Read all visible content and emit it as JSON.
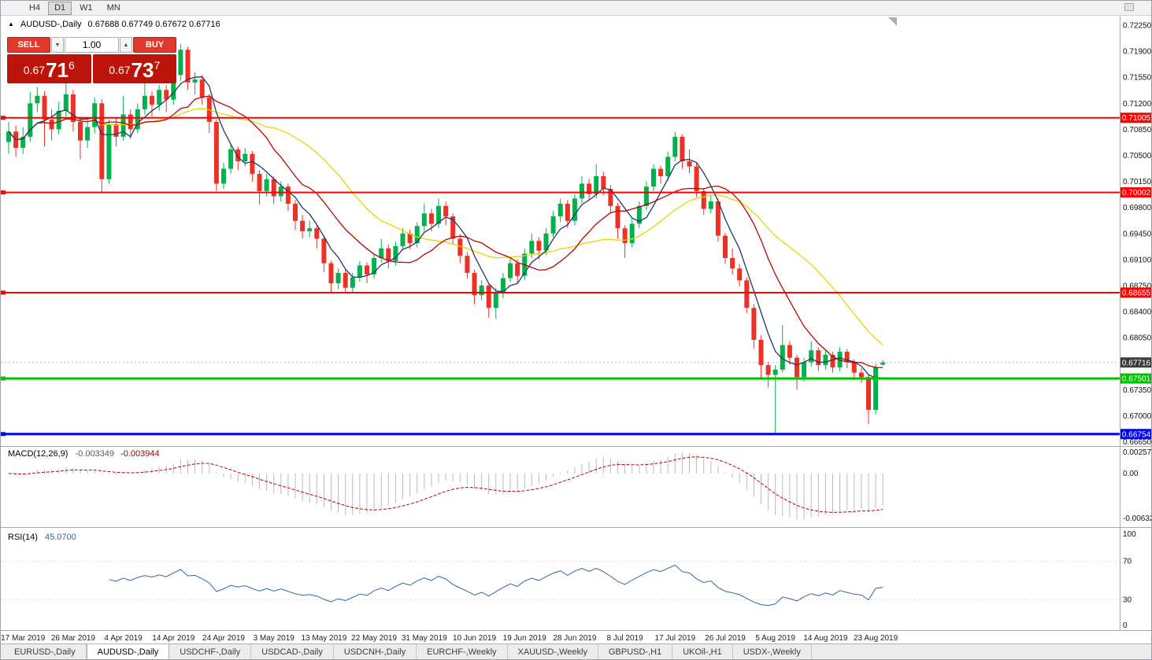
{
  "toolbar": {
    "timeframes": [
      "H4",
      "D1",
      "W1",
      "MN"
    ],
    "active": "D1"
  },
  "chart_header": {
    "title": "AUDUSD-,Daily",
    "ohlc": "0.67688 0.67749 0.67672 0.67716"
  },
  "trade_panel": {
    "sell_label": "SELL",
    "buy_label": "BUY",
    "volume": "1.00",
    "down_arrow": "▼",
    "up_arrow": "▲",
    "bid": {
      "prefix": "0.67",
      "big": "71",
      "sup": "6"
    },
    "ask": {
      "prefix": "0.67",
      "big": "73",
      "sup": "7"
    }
  },
  "macd_panel": {
    "name": "MACD(12,26,9)",
    "value_main": "-0.003349",
    "value_signal": "-0.003944"
  },
  "rsi_panel": {
    "name": "RSI(14)",
    "value": "45.0700"
  },
  "bottom_tabs": {
    "tabs": [
      "EURUSD-,Daily",
      "AUDUSD-,Daily",
      "USDCHF-,Daily",
      "USDCAD-,Daily",
      "USDCNH-,Daily",
      "EURCHF-,Weekly",
      "XAUUSD-,Weekly",
      "GBPUSD-,H1",
      "UKOil-,H1",
      "USDX-,Weekly"
    ],
    "active": "AUDUSD-,Daily"
  },
  "chart_data": {
    "type": "candlestick",
    "symbol": "AUDUSD-",
    "timeframe": "Daily",
    "ohlc_current": {
      "open": 0.67688,
      "high": 0.67749,
      "low": 0.67672,
      "close": 0.67716
    },
    "colors": {
      "up": "#00b14c",
      "down": "#ef3024"
    },
    "price_axis": {
      "max": 0.7225,
      "step": 0.0035,
      "labels": [
        "0.72250",
        "0.71900",
        "0.71550",
        "0.71200",
        "0.70850",
        "0.70500",
        "0.70150",
        "0.69800",
        "0.69450",
        "0.69100",
        "0.68750",
        "0.68400",
        "0.68050",
        "0.67700",
        "0.67350",
        "0.67000",
        "0.66650"
      ]
    },
    "levels": [
      {
        "price": 0.71005,
        "label": "0.71005",
        "color": "#ff0000",
        "width": 2
      },
      {
        "price": 0.70002,
        "label": "0.70002",
        "color": "#ff0000",
        "width": 2
      },
      {
        "price": 0.68655,
        "label": "0.68655",
        "color": "#ff0000",
        "width": 2
      },
      {
        "price": 0.67501,
        "label": "0.67501",
        "color": "#00c300",
        "width": 3
      },
      {
        "price": 0.66754,
        "label": "0.66754",
        "color": "#0000ff",
        "width": 3
      }
    ],
    "current_price": {
      "value": 0.67716,
      "label": "0.67716",
      "tag_color": "#3c3c3c"
    },
    "moving_averages": [
      {
        "period": 24,
        "color": "#e8d400"
      },
      {
        "period": 13,
        "color": "#c00000"
      },
      {
        "period": 5,
        "color": "#1f3864"
      }
    ],
    "macd": {
      "fast": 12,
      "slow": 26,
      "signal": 9,
      "histogram_color": "#b8b8b8",
      "signal_color": "#c00000",
      "axis_labels": [
        "0.002574",
        "0.00",
        "-0.006326"
      ]
    },
    "rsi": {
      "period": 14,
      "color": "#3465a8",
      "levels": [
        70,
        30
      ],
      "axis_labels": [
        "100",
        "70",
        "30",
        "0"
      ]
    },
    "x_labels": [
      {
        "i": 2,
        "label": "17 Mar 2019"
      },
      {
        "i": 9,
        "label": "26 Mar 2019"
      },
      {
        "i": 16,
        "label": "4 Apr 2019"
      },
      {
        "i": 23,
        "label": "14 Apr 2019"
      },
      {
        "i": 30,
        "label": "24 Apr 2019"
      },
      {
        "i": 37,
        "label": "3 May 2019"
      },
      {
        "i": 44,
        "label": "13 May 2019"
      },
      {
        "i": 51,
        "label": "22 May 2019"
      },
      {
        "i": 58,
        "label": "31 May 2019"
      },
      {
        "i": 65,
        "label": "10 Jun 2019"
      },
      {
        "i": 72,
        "label": "19 Jun 2019"
      },
      {
        "i": 79,
        "label": "28 Jun 2019"
      },
      {
        "i": 86,
        "label": "8 Jul 2019"
      },
      {
        "i": 93,
        "label": "17 Jul 2019"
      },
      {
        "i": 100,
        "label": "26 Jul 2019"
      },
      {
        "i": 107,
        "label": "5 Aug 2019"
      },
      {
        "i": 114,
        "label": "14 Aug 2019"
      },
      {
        "i": 121,
        "label": "23 Aug 2019"
      }
    ],
    "candles": [
      [
        0.7068,
        0.7095,
        0.7052,
        0.7082
      ],
      [
        0.7082,
        0.709,
        0.7048,
        0.706
      ],
      [
        0.706,
        0.7088,
        0.7052,
        0.7075
      ],
      [
        0.7075,
        0.7135,
        0.7068,
        0.712
      ],
      [
        0.712,
        0.7142,
        0.7108,
        0.713
      ],
      [
        0.713,
        0.7136,
        0.7062,
        0.7098
      ],
      [
        0.7098,
        0.7112,
        0.707,
        0.7085
      ],
      [
        0.7085,
        0.7122,
        0.7078,
        0.711
      ],
      [
        0.711,
        0.715,
        0.7102,
        0.7132
      ],
      [
        0.7132,
        0.7138,
        0.7082,
        0.7095
      ],
      [
        0.7095,
        0.7102,
        0.7045,
        0.707
      ],
      [
        0.707,
        0.7098,
        0.706,
        0.7088
      ],
      [
        0.7088,
        0.7128,
        0.708,
        0.712
      ],
      [
        0.712,
        0.7126,
        0.7,
        0.7018
      ],
      [
        0.7018,
        0.7098,
        0.7012,
        0.7092
      ],
      [
        0.7092,
        0.71,
        0.7062,
        0.7075
      ],
      [
        0.7075,
        0.713,
        0.707,
        0.7105
      ],
      [
        0.7105,
        0.7112,
        0.7072,
        0.7085
      ],
      [
        0.7085,
        0.712,
        0.708,
        0.7112
      ],
      [
        0.7112,
        0.7148,
        0.7105,
        0.713
      ],
      [
        0.713,
        0.7136,
        0.7102,
        0.7118
      ],
      [
        0.7118,
        0.7145,
        0.711,
        0.7138
      ],
      [
        0.7138,
        0.7144,
        0.7108,
        0.7125
      ],
      [
        0.7125,
        0.7168,
        0.7118,
        0.7158
      ],
      [
        0.7158,
        0.72,
        0.715,
        0.7192
      ],
      [
        0.7192,
        0.7196,
        0.7138,
        0.7148
      ],
      [
        0.7148,
        0.7162,
        0.7132,
        0.7152
      ],
      [
        0.7152,
        0.7158,
        0.7118,
        0.7128
      ],
      [
        0.7128,
        0.7132,
        0.708,
        0.7095
      ],
      [
        0.7095,
        0.7098,
        0.7002,
        0.7012
      ],
      [
        0.7012,
        0.704,
        0.7005,
        0.7032
      ],
      [
        0.7032,
        0.7065,
        0.7025,
        0.7058
      ],
      [
        0.7058,
        0.7062,
        0.703,
        0.7042
      ],
      [
        0.7042,
        0.706,
        0.7035,
        0.7052
      ],
      [
        0.7052,
        0.7056,
        0.7015,
        0.7025
      ],
      [
        0.7025,
        0.703,
        0.6984,
        0.7002
      ],
      [
        0.7002,
        0.7025,
        0.6995,
        0.7018
      ],
      [
        0.7018,
        0.7022,
        0.6985,
        0.6995
      ],
      [
        0.6995,
        0.7015,
        0.6988,
        0.7008
      ],
      [
        0.7008,
        0.7012,
        0.6975,
        0.6985
      ],
      [
        0.6985,
        0.699,
        0.695,
        0.6962
      ],
      [
        0.6962,
        0.697,
        0.6938,
        0.6948
      ],
      [
        0.6948,
        0.6962,
        0.694,
        0.6952
      ],
      [
        0.6952,
        0.6956,
        0.6925,
        0.6938
      ],
      [
        0.6938,
        0.6942,
        0.6893,
        0.6905
      ],
      [
        0.6905,
        0.6908,
        0.6866,
        0.6878
      ],
      [
        0.6878,
        0.6898,
        0.687,
        0.6892
      ],
      [
        0.6892,
        0.6896,
        0.6865,
        0.6872
      ],
      [
        0.6872,
        0.6892,
        0.6866,
        0.6886
      ],
      [
        0.6886,
        0.6908,
        0.688,
        0.6902
      ],
      [
        0.6902,
        0.6906,
        0.6878,
        0.689
      ],
      [
        0.689,
        0.6918,
        0.6884,
        0.6912
      ],
      [
        0.6912,
        0.6938,
        0.6906,
        0.6925
      ],
      [
        0.6925,
        0.693,
        0.6898,
        0.6908
      ],
      [
        0.6908,
        0.6934,
        0.6902,
        0.6928
      ],
      [
        0.6928,
        0.6952,
        0.6922,
        0.6945
      ],
      [
        0.6945,
        0.695,
        0.6924,
        0.6932
      ],
      [
        0.6932,
        0.696,
        0.6926,
        0.6955
      ],
      [
        0.6955,
        0.6985,
        0.6948,
        0.6972
      ],
      [
        0.6972,
        0.6978,
        0.6948,
        0.6958
      ],
      [
        0.6958,
        0.6992,
        0.6952,
        0.6982
      ],
      [
        0.6982,
        0.6988,
        0.6956,
        0.6968
      ],
      [
        0.6968,
        0.6972,
        0.693,
        0.6938
      ],
      [
        0.6938,
        0.6944,
        0.6905,
        0.6915
      ],
      [
        0.6915,
        0.692,
        0.6884,
        0.6892
      ],
      [
        0.6892,
        0.6896,
        0.685,
        0.6862
      ],
      [
        0.6862,
        0.6882,
        0.6855,
        0.6875
      ],
      [
        0.6875,
        0.6878,
        0.6832,
        0.6845
      ],
      [
        0.6845,
        0.6872,
        0.683,
        0.6865
      ],
      [
        0.6865,
        0.6892,
        0.6858,
        0.6885
      ],
      [
        0.6885,
        0.6912,
        0.688,
        0.6905
      ],
      [
        0.6905,
        0.691,
        0.6878,
        0.6888
      ],
      [
        0.6888,
        0.6925,
        0.6882,
        0.6918
      ],
      [
        0.6918,
        0.6945,
        0.6912,
        0.6935
      ],
      [
        0.6935,
        0.694,
        0.691,
        0.6922
      ],
      [
        0.6922,
        0.6952,
        0.6916,
        0.6945
      ],
      [
        0.6945,
        0.6975,
        0.694,
        0.6968
      ],
      [
        0.6968,
        0.6992,
        0.696,
        0.6985
      ],
      [
        0.6985,
        0.699,
        0.6952,
        0.6962
      ],
      [
        0.6962,
        0.6998,
        0.6956,
        0.6992
      ],
      [
        0.6992,
        0.7022,
        0.6986,
        0.7012
      ],
      [
        0.7012,
        0.7018,
        0.699,
        0.6998
      ],
      [
        0.6998,
        0.7038,
        0.6992,
        0.7022
      ],
      [
        0.7022,
        0.7028,
        0.6996,
        0.7005
      ],
      [
        0.7005,
        0.701,
        0.6972,
        0.6982
      ],
      [
        0.6982,
        0.6986,
        0.6938,
        0.6952
      ],
      [
        0.6952,
        0.6956,
        0.6912,
        0.6932
      ],
      [
        0.6932,
        0.6965,
        0.6926,
        0.6958
      ],
      [
        0.6958,
        0.6988,
        0.6952,
        0.6982
      ],
      [
        0.6982,
        0.7015,
        0.6976,
        0.7008
      ],
      [
        0.7008,
        0.7038,
        0.7002,
        0.7032
      ],
      [
        0.7032,
        0.7036,
        0.7012,
        0.7022
      ],
      [
        0.7022,
        0.7055,
        0.7016,
        0.7048
      ],
      [
        0.7048,
        0.7082,
        0.7042,
        0.7075
      ],
      [
        0.7075,
        0.7078,
        0.7032,
        0.7042
      ],
      [
        0.7042,
        0.7058,
        0.7026,
        0.7035
      ],
      [
        0.7035,
        0.704,
        0.6994,
        0.7002
      ],
      [
        0.7002,
        0.7006,
        0.697,
        0.6978
      ],
      [
        0.6978,
        0.6996,
        0.6972,
        0.6988
      ],
      [
        0.6988,
        0.6992,
        0.6934,
        0.6942
      ],
      [
        0.6942,
        0.6946,
        0.6904,
        0.6912
      ],
      [
        0.6912,
        0.6925,
        0.689,
        0.6898
      ],
      [
        0.6898,
        0.6904,
        0.6874,
        0.6882
      ],
      [
        0.6882,
        0.6886,
        0.6838,
        0.6845
      ],
      [
        0.6845,
        0.685,
        0.679,
        0.6802
      ],
      [
        0.6802,
        0.6808,
        0.6748,
        0.6768
      ],
      [
        0.6768,
        0.6772,
        0.6738,
        0.6755
      ],
      [
        0.6755,
        0.6768,
        0.6677,
        0.6762
      ],
      [
        0.6762,
        0.6822,
        0.6758,
        0.6795
      ],
      [
        0.6795,
        0.68,
        0.6768,
        0.6778
      ],
      [
        0.6778,
        0.6782,
        0.6735,
        0.6752
      ],
      [
        0.6752,
        0.6778,
        0.6746,
        0.6772
      ],
      [
        0.6772,
        0.68,
        0.6766,
        0.6788
      ],
      [
        0.6788,
        0.6792,
        0.676,
        0.6768
      ],
      [
        0.6768,
        0.6788,
        0.6762,
        0.6782
      ],
      [
        0.6782,
        0.6786,
        0.6758,
        0.6765
      ],
      [
        0.6765,
        0.6792,
        0.676,
        0.6786
      ],
      [
        0.6786,
        0.679,
        0.6764,
        0.6772
      ],
      [
        0.6772,
        0.6776,
        0.6748,
        0.6758
      ],
      [
        0.6758,
        0.6764,
        0.6744,
        0.6752
      ],
      [
        0.6752,
        0.6756,
        0.6689,
        0.6708
      ],
      [
        0.6708,
        0.677,
        0.6702,
        0.6765
      ],
      [
        0.67688,
        0.67749,
        0.67672,
        0.67716
      ]
    ]
  }
}
